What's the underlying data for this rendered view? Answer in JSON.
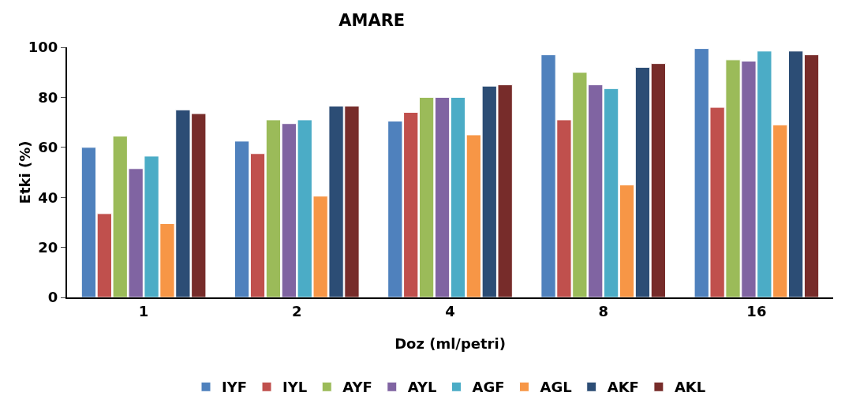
{
  "chart_data": {
    "type": "bar",
    "title": "AMARE",
    "xlabel": "Doz (ml/petri)",
    "ylabel": "Etki (%)",
    "categories": [
      "1",
      "2",
      "4",
      "8",
      "16"
    ],
    "series": [
      {
        "name": "IYF",
        "color": "#4f81bd",
        "values": [
          60,
          62.5,
          70.5,
          97,
          99.5
        ]
      },
      {
        "name": "IYL",
        "color": "#c0504d",
        "values": [
          33.5,
          57.5,
          74,
          71,
          76
        ]
      },
      {
        "name": "AYF",
        "color": "#9bbb59",
        "values": [
          64.5,
          71,
          80,
          90,
          95
        ]
      },
      {
        "name": "AYL",
        "color": "#8064a2",
        "values": [
          51.5,
          69.5,
          80,
          85,
          94.5
        ]
      },
      {
        "name": "AGF",
        "color": "#4bacc6",
        "values": [
          56.5,
          71,
          80,
          83.5,
          98.5
        ]
      },
      {
        "name": "AGL",
        "color": "#f79646",
        "values": [
          29.5,
          40.5,
          65,
          45,
          69
        ]
      },
      {
        "name": "AKF",
        "color": "#2c4d75",
        "values": [
          75,
          76.5,
          84.5,
          92,
          98.5
        ]
      },
      {
        "name": "AKL",
        "color": "#772c2a",
        "values": [
          73.5,
          76.5,
          85,
          93.5,
          97
        ]
      }
    ],
    "ylim": [
      0,
      100
    ],
    "yticks": [
      0,
      20,
      40,
      60,
      80,
      100
    ],
    "grid": false,
    "legend": "bottom"
  }
}
